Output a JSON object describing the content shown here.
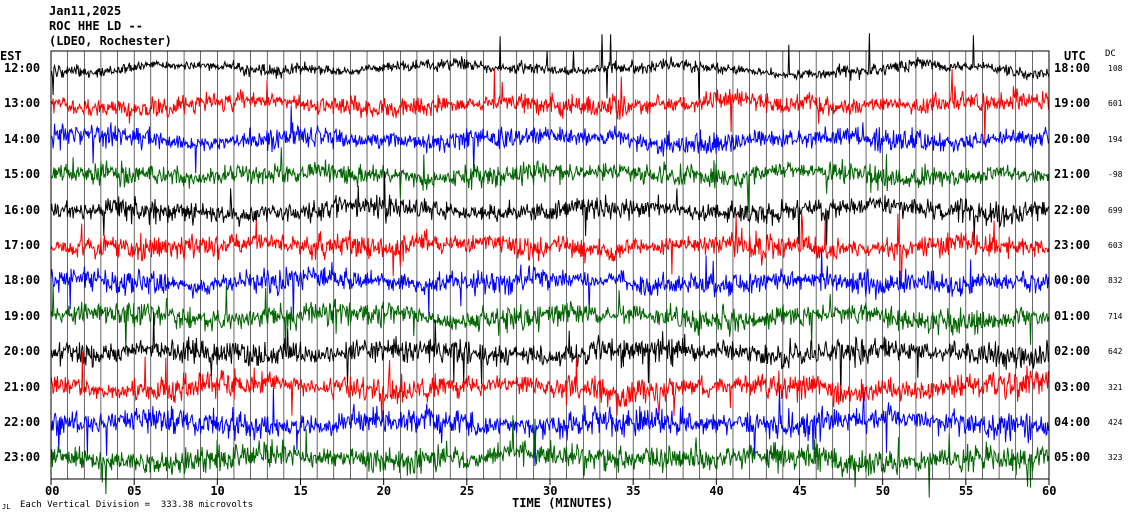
{
  "header": {
    "date": "Jan11,2025",
    "station": "ROC HHE LD --",
    "network": "(LDEO, Rochester)"
  },
  "left_axis_title": "EST",
  "right_axis_title": "UTC",
  "dc_title": "DC",
  "footer": {
    "scale_note": "Each Vertical Division =  333.38 microvolts",
    "logo_text": "JL"
  },
  "chart_data": {
    "type": "line",
    "xlabel": "TIME (MINUTES)",
    "xlim": [
      0,
      60
    ],
    "xticks": [
      "00",
      "05",
      "10",
      "15",
      "20",
      "25",
      "30",
      "35",
      "40",
      "45",
      "50",
      "55",
      "60"
    ],
    "color_cycle": [
      "#000000",
      "#ff0000",
      "#0000ff",
      "#006400"
    ],
    "rows": [
      {
        "est": "12:00",
        "utc": "18:00",
        "dc": "108"
      },
      {
        "est": "13:00",
        "utc": "19:00",
        "dc": "601"
      },
      {
        "est": "14:00",
        "utc": "20:00",
        "dc": "194"
      },
      {
        "est": "15:00",
        "utc": "21:00",
        "dc": "-98"
      },
      {
        "est": "16:00",
        "utc": "22:00",
        "dc": "699"
      },
      {
        "est": "17:00",
        "utc": "23:00",
        "dc": "603"
      },
      {
        "est": "18:00",
        "utc": "00:00",
        "dc": "832"
      },
      {
        "est": "19:00",
        "utc": "01:00",
        "dc": "714"
      },
      {
        "est": "20:00",
        "utc": "02:00",
        "dc": "642"
      },
      {
        "est": "21:00",
        "utc": "03:00",
        "dc": "321"
      },
      {
        "est": "22:00",
        "utc": "04:00",
        "dc": "424"
      },
      {
        "est": "23:00",
        "utc": "05:00",
        "dc": "323"
      }
    ]
  }
}
